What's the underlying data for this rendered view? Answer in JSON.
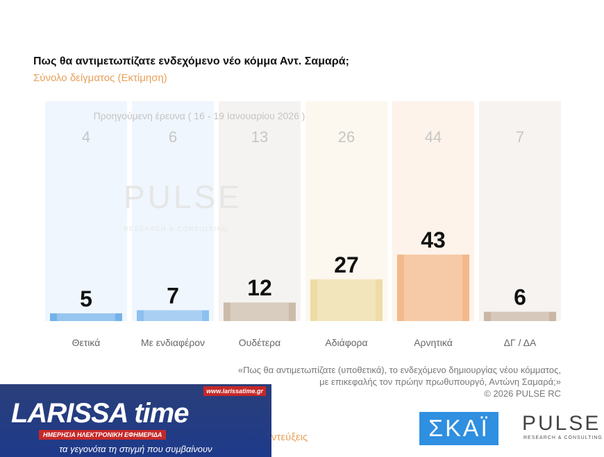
{
  "header": {
    "title": "Πως θα αντιμετωπίζατε ενδεχόμενο νέο κόμμα Αντ. Σαμαρά;",
    "subtitle": "Σύνολο δείγματος  (Εκτίμηση)"
  },
  "chart_data": {
    "type": "bar",
    "categories": [
      "Θετικά",
      "Με ενδιαφέρον",
      "Ουδέτερα",
      "Αδιάφορα",
      "Αρνητικά",
      "ΔΓ / ΔΑ"
    ],
    "series": [
      {
        "values": [
          5,
          7,
          12,
          27,
          43,
          6
        ]
      }
    ],
    "previous": {
      "label": "Προηγούμενη έρευνα ( 16 - 19 Ιανουαρίου 2026 )",
      "values": [
        4,
        6,
        13,
        26,
        44,
        7
      ]
    },
    "colors": [
      "#73b2ea",
      "#8cc0ee",
      "#cbbca9",
      "#eedca6",
      "#f3b98a",
      "#c9b6a4"
    ],
    "column_colors": [
      "#eff6fd",
      "#eff6fd",
      "#f5f3f1",
      "#fcf8ef",
      "#fdf3ea",
      "#f6f3f0"
    ],
    "ylim": [
      0,
      100
    ]
  },
  "footer": {
    "note_line1": "«Πως θα αντιμετωπίζατε (υποθετικά), το ενδεχόμενο δημιουργίας νέου κόμματος,",
    "note_line2": "με επικεφαλής τον πρώην πρωθυπουργό, Αντώνη Σαμαρά;»",
    "copyright": "©  2026  PULSE RC"
  },
  "watermark": {
    "text": "PULSE",
    "sub": "RESEARCH & CONSULTING"
  },
  "banner": {
    "brand": "LARISSA time",
    "url": "www.larissatime.gr",
    "sub": "ΗΜΕΡΗΣΙΑ ΗΛΕΚΤΡΟΝΙΚΗ ΕΦΗΜΕΡΙΔΑ",
    "tagline": "τα γεγονότα τη στιγμή που συμβαίνουν",
    "cut_text": "ντεύξεις"
  },
  "logos": {
    "skai": "ΣΚΑΪ",
    "pulse": "PULSE",
    "pulse_sub": "RESEARCH & CONSULTING"
  }
}
